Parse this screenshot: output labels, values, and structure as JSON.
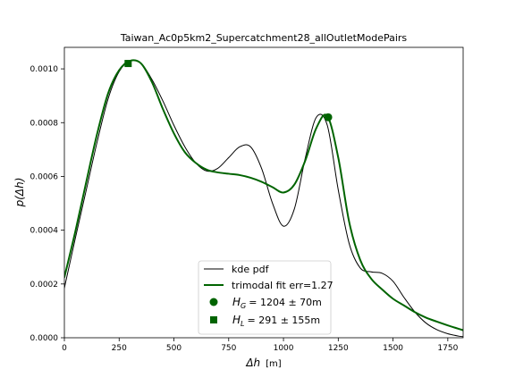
{
  "chart_data": {
    "type": "line",
    "title": "Taiwan_Ac0p5km2_Supercatchment28_allOutletModePairs",
    "xlabel_symbol": "Δh",
    "xlabel_unit": "[m]",
    "ylabel": "p(Δh)",
    "xlim": [
      0,
      1820
    ],
    "ylim": [
      0,
      0.00108
    ],
    "xticks": [
      0,
      250,
      500,
      750,
      1000,
      1250,
      1500,
      1750
    ],
    "xtick_labels": [
      "0",
      "250",
      "500",
      "750",
      "1000",
      "1250",
      "1500",
      "1750"
    ],
    "yticks": [
      0,
      0.0002,
      0.0004,
      0.0006,
      0.0008,
      0.001
    ],
    "ytick_labels": [
      "0.0000",
      "0.0002",
      "0.0004",
      "0.0006",
      "0.0008",
      "0.0010"
    ],
    "grid": false,
    "legend_placement": "bottom-center",
    "series": [
      {
        "name": "kde pdf",
        "color": "#000000",
        "x": [
          0,
          50,
          100,
          150,
          200,
          250,
          300,
          350,
          400,
          450,
          500,
          550,
          600,
          650,
          700,
          750,
          800,
          850,
          900,
          950,
          1000,
          1050,
          1100,
          1150,
          1200,
          1250,
          1300,
          1350,
          1400,
          1450,
          1500,
          1550,
          1600,
          1650,
          1700,
          1750,
          1800,
          1820
        ],
        "y": [
          0.000185,
          0.00037,
          0.00055,
          0.00073,
          0.00089,
          0.00099,
          0.00103,
          0.00102,
          0.00096,
          0.00088,
          0.00079,
          0.00071,
          0.00065,
          0.00062,
          0.00063,
          0.00067,
          0.00071,
          0.00071,
          0.00063,
          0.0005,
          0.000415,
          0.00048,
          0.00067,
          0.00082,
          0.00079,
          0.00055,
          0.00035,
          0.00026,
          0.000245,
          0.00024,
          0.00021,
          0.00015,
          9.55e-05,
          5.5e-05,
          3e-05,
          1.5e-05,
          6e-06,
          4e-06
        ]
      },
      {
        "name": "trimodal fit err=1.27",
        "color": "#006400",
        "x": [
          0,
          50,
          100,
          150,
          200,
          250,
          300,
          350,
          400,
          450,
          500,
          550,
          600,
          650,
          700,
          750,
          800,
          850,
          900,
          950,
          1000,
          1050,
          1100,
          1150,
          1200,
          1250,
          1300,
          1350,
          1400,
          1450,
          1500,
          1550,
          1600,
          1650,
          1700,
          1750,
          1800,
          1820
        ],
        "y": [
          0.000225,
          0.000395,
          0.00058,
          0.00076,
          0.00091,
          0.000995,
          0.00103,
          0.00102,
          0.00095,
          0.00085,
          0.00076,
          0.00069,
          0.00065,
          0.000625,
          0.000615,
          0.00061,
          0.000605,
          0.000595,
          0.00058,
          0.00056,
          0.00054,
          0.00057,
          0.00066,
          0.00078,
          0.000825,
          0.00067,
          0.00043,
          0.00029,
          0.00022,
          0.00018,
          0.000145,
          0.00012,
          9.5e-05,
          7.5e-05,
          6e-05,
          4.6e-05,
          3.3e-05,
          2.8e-05
        ]
      }
    ],
    "markers": [
      {
        "name": "H_G",
        "shape": "circle",
        "color": "#006400",
        "x": 1204,
        "y": 0.00082,
        "legend_label": "H_G = 1204 ± 70m"
      },
      {
        "name": "H_L",
        "shape": "square",
        "color": "#006400",
        "x": 291,
        "y": 0.00102,
        "legend_label": "H_L = 291 ± 155m"
      }
    ]
  },
  "legend": {
    "kde_label": "kde pdf",
    "fit_label": "trimodal fit err=1.27",
    "hg_value": "= 1204 ± 70m",
    "hl_value": "= 291 ± 155m"
  }
}
